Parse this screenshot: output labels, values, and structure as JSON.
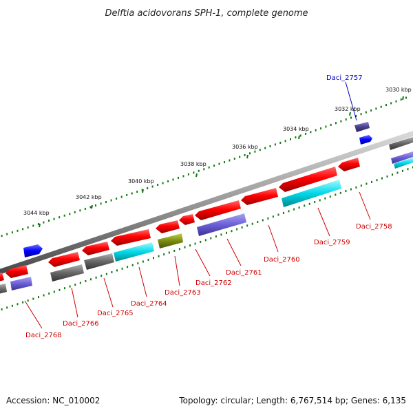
{
  "title": "Delftia acidovorans SPH-1, complete genome",
  "footer": {
    "accession": "Accession: NC_010002",
    "stats": "Topology: circular; Length: 6,767,514 bp; Genes: 6,135"
  },
  "ticks": [
    {
      "label": "3030 kbp"
    },
    {
      "label": "3032 kbp"
    },
    {
      "label": "3034 kbp"
    },
    {
      "label": "3036 kbp"
    },
    {
      "label": "3038 kbp"
    },
    {
      "label": "3040 kbp"
    },
    {
      "label": "3042 kbp"
    },
    {
      "label": "3044 kbp"
    }
  ],
  "gene_labels": [
    {
      "text": "Daci_2757",
      "color": "#0000cc"
    },
    {
      "text": "Daci_2758",
      "color": "#d00000"
    },
    {
      "text": "Daci_2759",
      "color": "#d00000"
    },
    {
      "text": "Daci_2760",
      "color": "#d00000"
    },
    {
      "text": "Daci_2761",
      "color": "#d00000"
    },
    {
      "text": "Daci_2762",
      "color": "#d00000"
    },
    {
      "text": "Daci_2763",
      "color": "#d00000"
    },
    {
      "text": "Daci_2764",
      "color": "#d00000"
    },
    {
      "text": "Daci_2765",
      "color": "#d00000"
    },
    {
      "text": "Daci_2766",
      "color": "#d00000"
    },
    {
      "text": "Daci_2768",
      "color": "#d00000"
    }
  ],
  "colors": {
    "cds": "#ff0000",
    "gene": "#6b5fd8",
    "rrna": "#00d8e8",
    "pseudo": "#666666",
    "misc": "#7a8c10",
    "trna": "#0000ff",
    "backbone": "#999999",
    "tick": "#117711"
  }
}
